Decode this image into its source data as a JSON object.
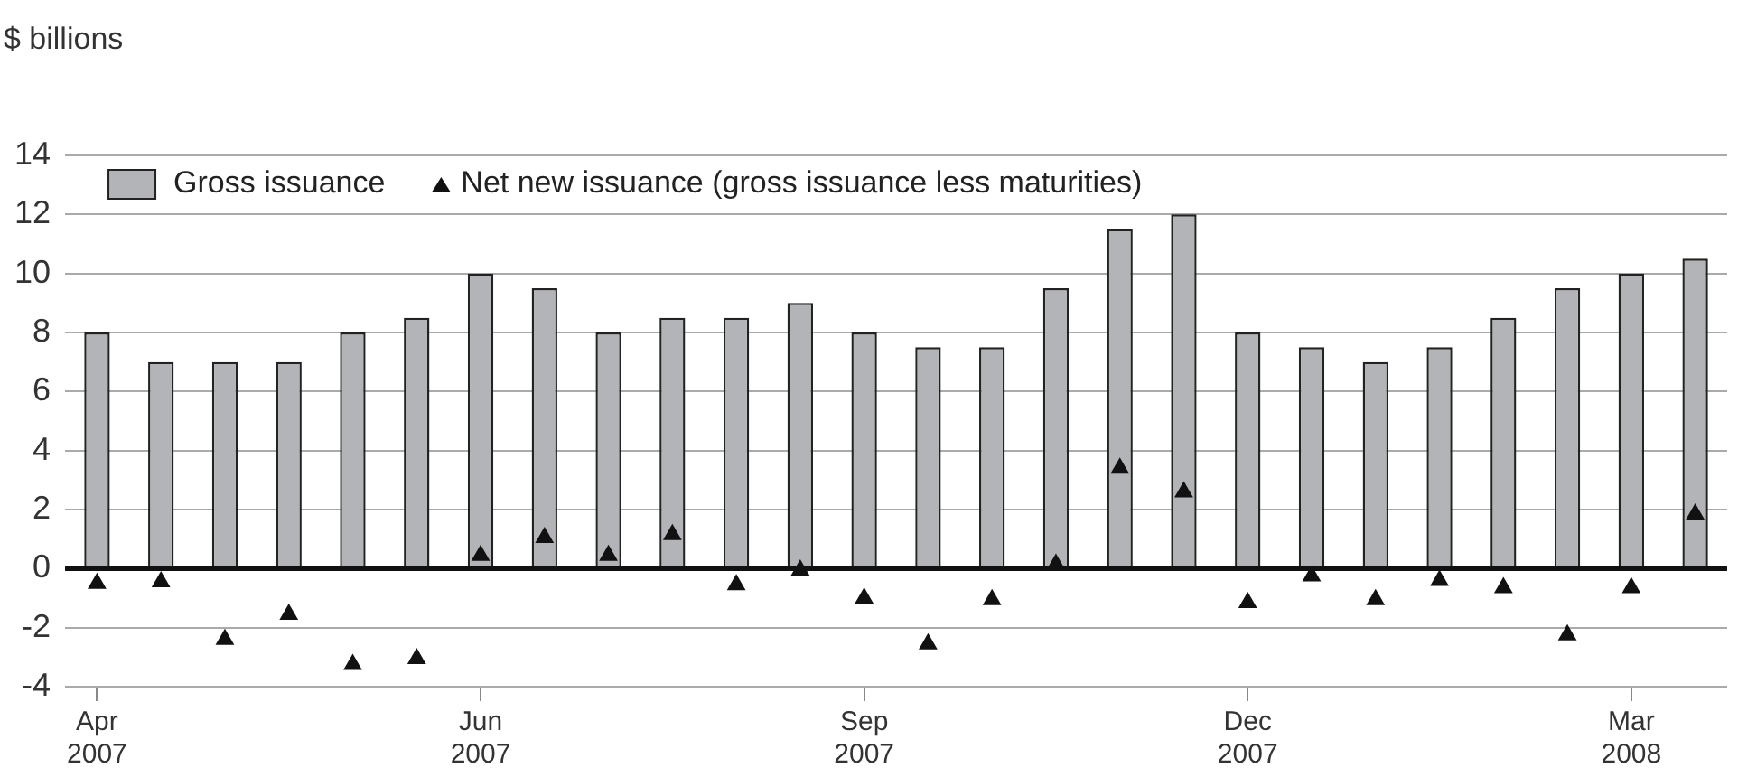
{
  "chart_data": {
    "type": "bar",
    "ylabel": "$ billions",
    "categories": [
      "Apr 2007",
      null,
      null,
      null,
      null,
      null,
      "Jun 2007",
      null,
      null,
      null,
      null,
      null,
      "Sep 2007",
      null,
      null,
      null,
      null,
      null,
      "Dec 2007",
      null,
      null,
      null,
      null,
      null,
      "Mar 2008",
      null
    ],
    "series": [
      {
        "name": "Gross issuance",
        "color": "#b3b4b8",
        "values": [
          8,
          7,
          7,
          7,
          8,
          8.5,
          10,
          9.5,
          8,
          8.5,
          8.5,
          9,
          8,
          7.5,
          7.5,
          9.5,
          11.5,
          12,
          8,
          7.5,
          7,
          7.5,
          8.5,
          9.5,
          10,
          10.5
        ]
      },
      {
        "name": "Net new issuance (gross issuance less maturities)",
        "type": "scatter",
        "color": "#111111",
        "marker": "triangle",
        "values": [
          -0.5,
          -0.45,
          -2.4,
          -1.55,
          -3.25,
          -3.05,
          0.45,
          1.05,
          0.45,
          1.15,
          -0.55,
          -0.05,
          -1.0,
          -2.55,
          -1.05,
          0.15,
          3.4,
          2.6,
          -1.15,
          -0.25,
          -1.05,
          -0.4,
          -0.65,
          -2.25,
          -0.65,
          1.85
        ]
      }
    ],
    "ylim": [
      -4,
      14
    ],
    "yticks": [
      -4,
      -2,
      0,
      2,
      4,
      6,
      8,
      10,
      12,
      14
    ],
    "grid": "y",
    "legend": "top left"
  }
}
